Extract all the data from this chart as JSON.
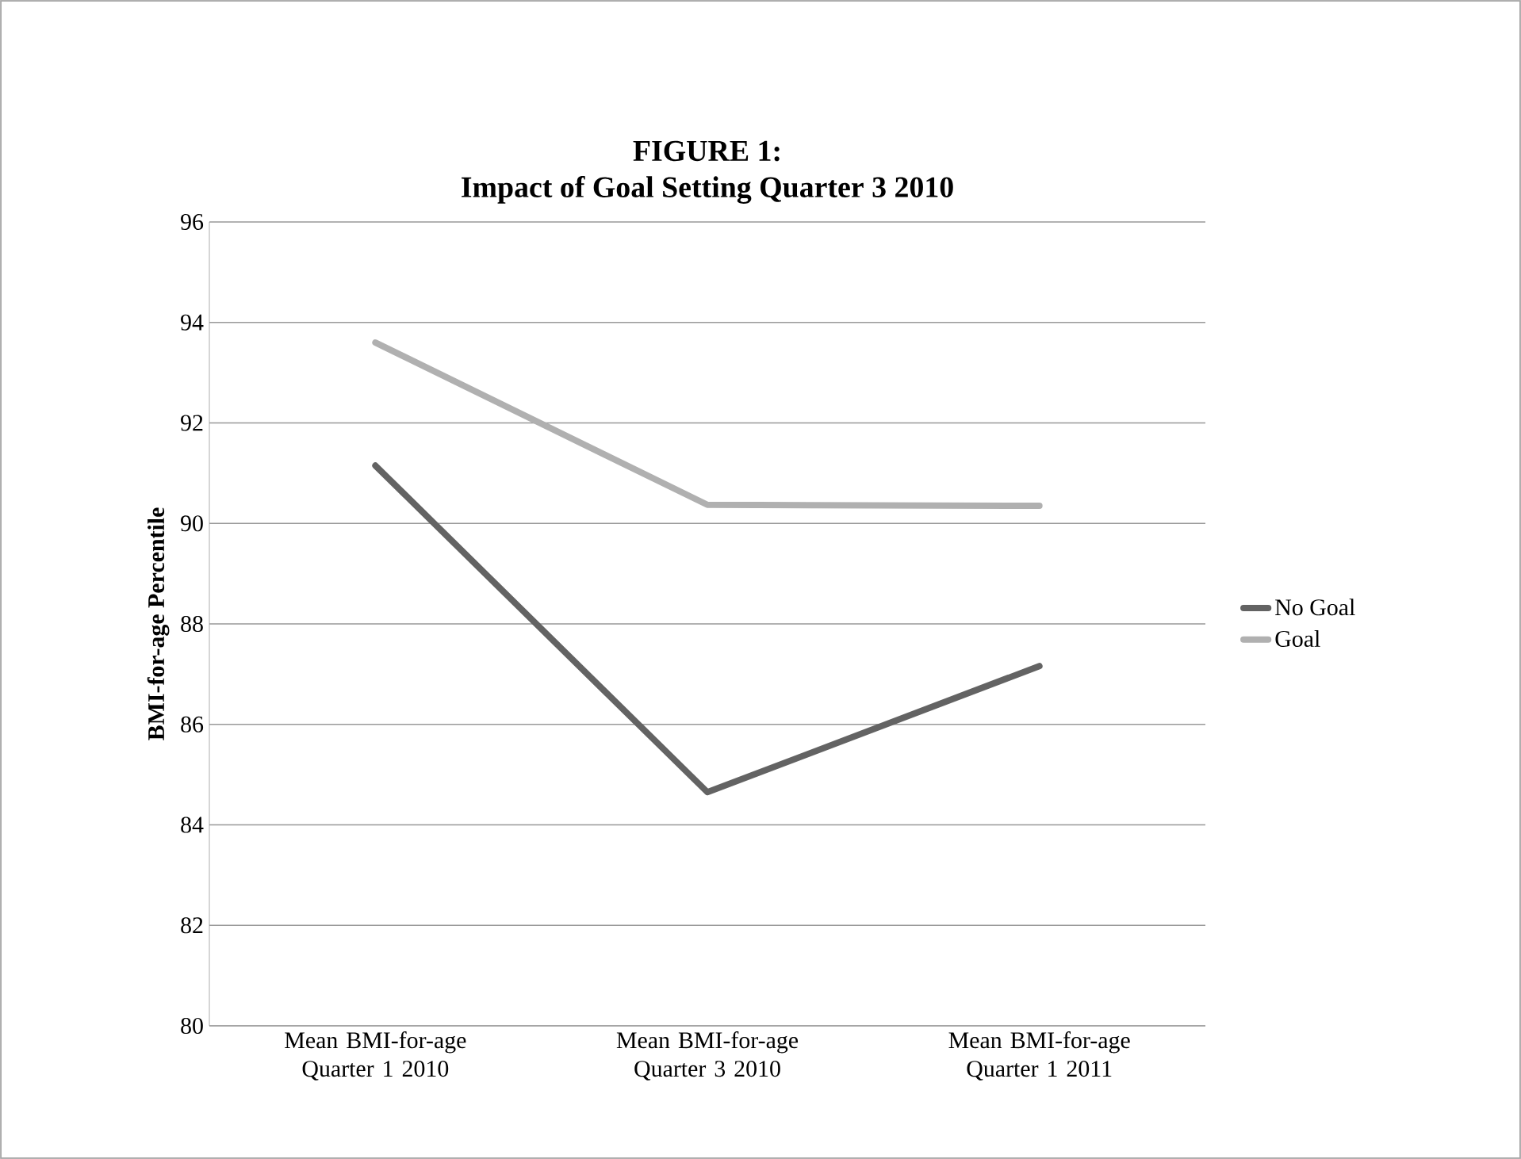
{
  "chart_data": {
    "type": "line",
    "title": "FIGURE 1:\nImpact of Goal Setting Quarter 3 2010",
    "ylabel": "BMI-for-age Percentile",
    "categories": [
      "Mean BMI-for-age\nQuarter 1 2010",
      "Mean BMI-for-age\nQuarter 3 2010",
      "Mean BMI-for-age\nQuarter 1 2011"
    ],
    "series": [
      {
        "name": "No Goal",
        "color": "#636363",
        "values": [
          91.15,
          84.65,
          87.16
        ]
      },
      {
        "name": "Goal",
        "color": "#b0b0b0",
        "values": [
          93.6,
          90.37,
          90.35
        ]
      }
    ],
    "ylim": [
      80,
      96
    ],
    "yticks": [
      80,
      82,
      84,
      86,
      88,
      90,
      92,
      94,
      96
    ],
    "grid": "y",
    "legend": "right",
    "marker": "none",
    "line_style": "solid"
  }
}
